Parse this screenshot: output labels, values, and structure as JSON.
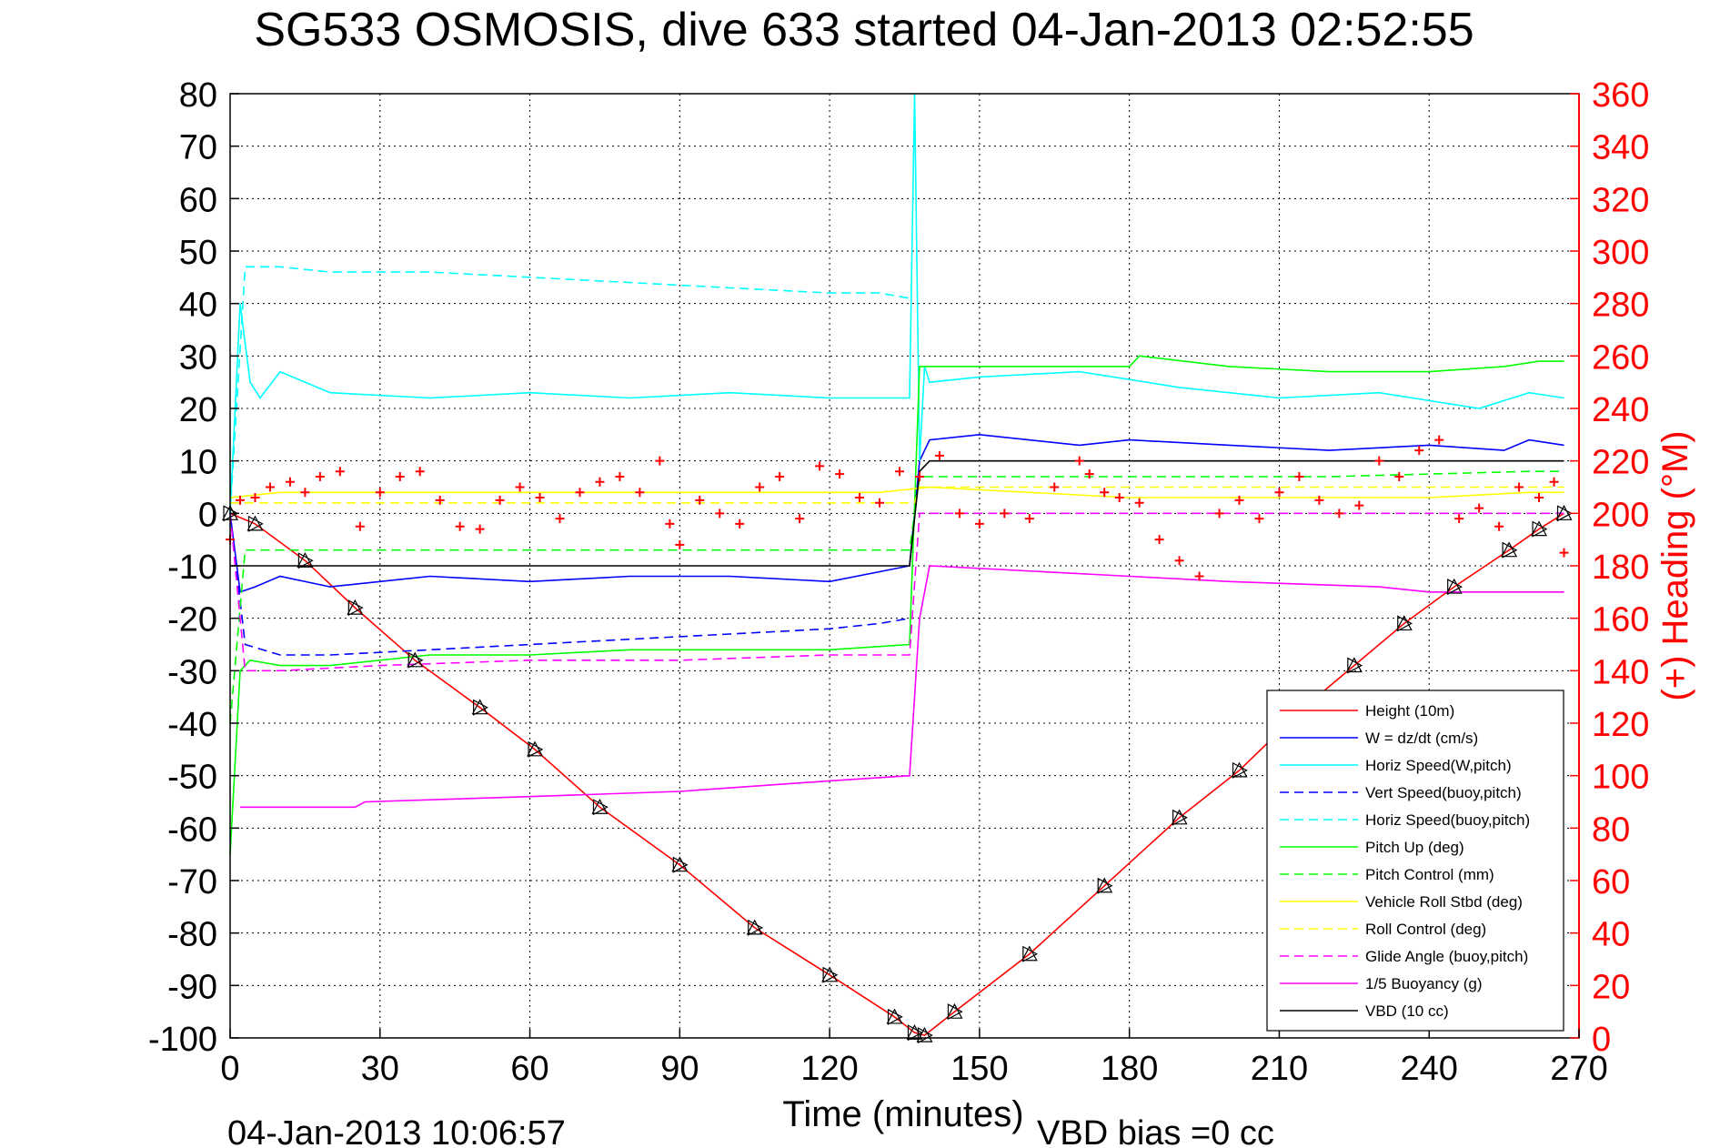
{
  "chart_data": {
    "type": "line",
    "title": "SG533 OSMOSIS, dive 633 started 04-Jan-2013 02:52:55",
    "xlabel": "Time (minutes)",
    "ylabel": "",
    "ylabel_right": "(+) Heading (°M)",
    "xlim": [
      0,
      270
    ],
    "ylim": [
      -100,
      80
    ],
    "ylim_right": [
      0,
      360
    ],
    "xticks": [
      "0",
      "30",
      "60",
      "90",
      "120",
      "150",
      "180",
      "210",
      "240",
      "270"
    ],
    "yticks": [
      "80",
      "70",
      "60",
      "50",
      "40",
      "30",
      "20",
      "10",
      "0",
      "-10",
      "-20",
      "-30",
      "-40",
      "-50",
      "-60",
      "-70",
      "-80",
      "-90",
      "-100"
    ],
    "yticks_right": [
      "360",
      "340",
      "320",
      "300",
      "280",
      "260",
      "240",
      "220",
      "200",
      "180",
      "160",
      "140",
      "120",
      "100",
      "80",
      "60",
      "40",
      "20",
      "0"
    ],
    "grid": true,
    "legend_position": "bottom-right",
    "footer_left": "04-Jan-2013 10:06:57",
    "footer_right": "VBD bias =0 cc",
    "colors": {
      "axis_right": "#ff0000",
      "height": "#ff0000",
      "w": "#0000ff",
      "horiz_speed_w": "#00ffff",
      "vert_speed_buoy": "#0000ff",
      "horiz_speed_buoy": "#00ffff",
      "pitch": "#00ff00",
      "pitch_control": "#00ff00",
      "roll": "#ffff00",
      "roll_control": "#ffff00",
      "glide_angle": "#ff00ff",
      "buoyancy": "#ff00ff",
      "vbd": "#000000"
    },
    "series": [
      {
        "name": "Height (10m)",
        "style": "solid",
        "color": "#ff0000",
        "x": [
          0,
          5,
          15,
          25,
          37,
          50,
          61,
          74,
          90,
          105,
          120,
          133,
          137,
          139,
          145,
          160,
          175,
          190,
          202,
          215,
          225,
          235,
          245,
          256,
          262,
          267
        ],
        "y": [
          0,
          -2,
          -9,
          -18,
          -28,
          -37,
          -45,
          -56,
          -67,
          -79,
          -88,
          -96,
          -99,
          -99.5,
          -95,
          -84,
          -71,
          -58,
          -49,
          -37,
          -29,
          -21,
          -14,
          -7,
          -3,
          0
        ]
      },
      {
        "name": "W = dz/dt (cm/s)",
        "style": "solid",
        "color": "#0000ff",
        "x": [
          0,
          2,
          5,
          10,
          20,
          40,
          60,
          80,
          100,
          120,
          136,
          138,
          140,
          150,
          170,
          180,
          200,
          220,
          240,
          255,
          260,
          267
        ],
        "y": [
          0,
          -15,
          -14,
          -12,
          -14,
          -12,
          -13,
          -12,
          -12,
          -13,
          -10,
          10,
          14,
          15,
          13,
          14,
          13,
          12,
          13,
          12,
          14,
          13
        ]
      },
      {
        "name": "Horiz Speed(W,pitch)",
        "style": "solid",
        "color": "#00ffff",
        "x": [
          0,
          2,
          4,
          6,
          10,
          20,
          40,
          60,
          80,
          100,
          120,
          136,
          137,
          138,
          139,
          140,
          150,
          170,
          190,
          210,
          230,
          250,
          260,
          267
        ],
        "y": [
          0,
          40,
          25,
          22,
          27,
          23,
          22,
          23,
          22,
          23,
          22,
          22,
          80,
          10,
          28,
          25,
          26,
          27,
          24,
          22,
          23,
          20,
          23,
          22
        ]
      },
      {
        "name": "Vert Speed(buoy,pitch)",
        "style": "dashed",
        "color": "#0000ff",
        "x": [
          0,
          3,
          10,
          20,
          40,
          60,
          80,
          100,
          120,
          130,
          136
        ],
        "y": [
          0,
          -25,
          -27,
          -27,
          -26,
          -25,
          -24,
          -23,
          -22,
          -21,
          -20
        ]
      },
      {
        "name": "Horiz Speed(buoy,pitch)",
        "style": "dashed",
        "color": "#00ffff",
        "x": [
          0,
          3,
          10,
          20,
          40,
          60,
          80,
          100,
          120,
          130,
          136
        ],
        "y": [
          0,
          47,
          47,
          46,
          46,
          45,
          44,
          43,
          42,
          42,
          41
        ]
      },
      {
        "name": "Pitch Up (deg)",
        "style": "solid",
        "color": "#00ff00",
        "x": [
          0,
          2,
          4,
          10,
          20,
          40,
          60,
          80,
          100,
          120,
          136,
          138,
          140,
          160,
          180,
          182,
          200,
          220,
          240,
          255,
          262,
          267
        ],
        "y": [
          -65,
          -30,
          -28,
          -29,
          -29,
          -27,
          -27,
          -26,
          -26,
          -26,
          -25,
          28,
          28,
          28,
          28,
          30,
          28,
          27,
          27,
          28,
          29,
          29
        ]
      },
      {
        "name": "Pitch Control (mm)",
        "style": "dashed",
        "color": "#00ff00",
        "x": [
          0,
          3,
          10,
          40,
          80,
          120,
          136,
          138,
          140,
          180,
          220,
          260,
          267
        ],
        "y": [
          -40,
          -7,
          -7,
          -7,
          -7,
          -7,
          -7,
          7,
          7,
          7,
          7,
          8,
          8
        ]
      },
      {
        "name": "Vehicle Roll Stbd (deg)",
        "style": "solid",
        "color": "#ffff00",
        "x": [
          0,
          10,
          30,
          50,
          70,
          90,
          110,
          130,
          140,
          160,
          180,
          200,
          220,
          240,
          260,
          267
        ],
        "y": [
          3,
          4,
          4,
          4,
          4,
          4,
          4,
          4,
          5,
          4,
          3,
          3,
          3,
          3,
          4,
          4
        ]
      },
      {
        "name": "Roll Control (deg)",
        "style": "dashed",
        "color": "#ffff00",
        "x": [
          0,
          137,
          138,
          267
        ],
        "y": [
          2,
          2,
          5,
          5
        ]
      },
      {
        "name": "Glide Angle (buoy,pitch)",
        "style": "dashed",
        "color": "#ff00ff",
        "x": [
          0,
          3,
          10,
          30,
          60,
          90,
          120,
          136,
          138,
          140,
          180,
          220,
          267
        ],
        "y": [
          0,
          -30,
          -30,
          -29,
          -28,
          -28,
          -27,
          -27,
          0,
          0,
          0,
          0,
          0
        ]
      },
      {
        "name": "1/5 Buoyancy (g)",
        "style": "solid",
        "color": "#ff00ff",
        "x": [
          2,
          3,
          25,
          27,
          60,
          90,
          120,
          136,
          138,
          140,
          180,
          200,
          230,
          240,
          260,
          267
        ],
        "y": [
          -56,
          -56,
          -56,
          -55,
          -54,
          -53,
          -51,
          -50,
          -20,
          -10,
          -12,
          -13,
          -14,
          -15,
          -15,
          -15
        ]
      },
      {
        "name": "VBD (10 cc)",
        "style": "solid",
        "color": "#000000",
        "x": [
          0,
          3,
          136,
          138,
          140,
          267
        ],
        "y": [
          -10,
          -10,
          -10,
          8,
          10,
          10
        ]
      }
    ],
    "heading_data": {
      "marker": "+",
      "color": "#ff0000",
      "x": [
        0,
        2,
        5,
        8,
        12,
        15,
        18,
        22,
        26,
        30,
        34,
        38,
        42,
        46,
        50,
        54,
        58,
        62,
        66,
        70,
        74,
        78,
        82,
        86,
        88,
        90,
        94,
        98,
        102,
        106,
        110,
        114,
        118,
        122,
        126,
        130,
        134,
        138,
        142,
        146,
        150,
        155,
        160,
        165,
        170,
        172,
        175,
        178,
        182,
        186,
        190,
        194,
        198,
        202,
        206,
        210,
        214,
        218,
        222,
        226,
        230,
        234,
        238,
        242,
        246,
        250,
        254,
        258,
        262,
        265,
        267
      ],
      "y": [
        190,
        205,
        206,
        210,
        212,
        208,
        214,
        216,
        195,
        208,
        214,
        216,
        205,
        195,
        194,
        205,
        210,
        206,
        198,
        208,
        212,
        214,
        208,
        220,
        196,
        188,
        205,
        200,
        196,
        210,
        214,
        198,
        218,
        215,
        206,
        204,
        216,
        214,
        222,
        200,
        196,
        200,
        198,
        210,
        220,
        215,
        208,
        206,
        204,
        190,
        182,
        176,
        200,
        205,
        198,
        208,
        214,
        205,
        200,
        203,
        220,
        214,
        224,
        228,
        198,
        202,
        195,
        210,
        206,
        212,
        185
      ]
    }
  }
}
